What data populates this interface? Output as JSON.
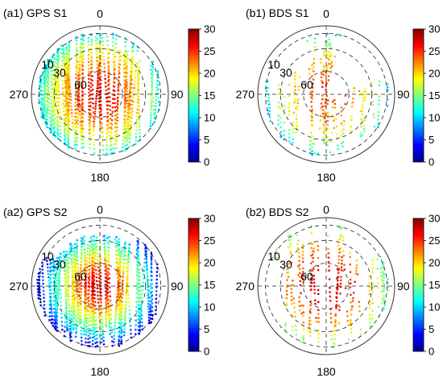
{
  "chart_data": [
    {
      "type": "scatter",
      "title": "(a1) GPS S1",
      "projection": "polar (skyplot)",
      "azimuth_labels": [
        "0",
        "90",
        "180",
        "270"
      ],
      "elevation_labels": [
        "10",
        "30",
        "60"
      ],
      "colorbar": {
        "range": [
          0,
          30
        ],
        "ticks": [
          "0",
          "5",
          "10",
          "15",
          "20",
          "25",
          "30"
        ],
        "colormap": "jet"
      },
      "footprint": "dense tracks over most of the sky; elevation >= ~10 deg",
      "values_by_elevation_deg": [
        {
          "elevation": 10,
          "value": 11
        },
        {
          "elevation": 20,
          "value": 15
        },
        {
          "elevation": 30,
          "value": 18
        },
        {
          "elevation": 45,
          "value": 21
        },
        {
          "elevation": 60,
          "value": 24
        },
        {
          "elevation": 75,
          "value": 26
        },
        {
          "elevation": 90,
          "value": 27
        }
      ]
    },
    {
      "type": "scatter",
      "title": "(b1) BDS S1",
      "projection": "polar (skyplot)",
      "azimuth_labels": [
        "0",
        "90",
        "180",
        "270"
      ],
      "elevation_labels": [
        "10",
        "30",
        "60"
      ],
      "colorbar": {
        "range": [
          0,
          30
        ],
        "ticks": [
          "0",
          "5",
          "10",
          "15",
          "20",
          "25",
          "30"
        ],
        "colormap": "jet"
      },
      "footprint": "sparser tracks; gap in the north-east",
      "values_by_elevation_deg": [
        {
          "elevation": 10,
          "value": 10
        },
        {
          "elevation": 20,
          "value": 14
        },
        {
          "elevation": 30,
          "value": 17
        },
        {
          "elevation": 45,
          "value": 20
        },
        {
          "elevation": 60,
          "value": 22
        },
        {
          "elevation": 75,
          "value": 24
        },
        {
          "elevation": 90,
          "value": 25
        }
      ]
    },
    {
      "type": "scatter",
      "title": "(a2) GPS S2",
      "projection": "polar (skyplot)",
      "azimuth_labels": [
        "0",
        "90",
        "180",
        "270"
      ],
      "elevation_labels": [
        "10",
        "30",
        "60"
      ],
      "colorbar": {
        "range": [
          0,
          30
        ],
        "ticks": [
          "0",
          "5",
          "10",
          "15",
          "20",
          "25",
          "30"
        ],
        "colormap": "jet"
      },
      "footprint": "dense tracks; very low values at low elevations in the south",
      "values_by_elevation_deg": [
        {
          "elevation": 10,
          "value": 3
        },
        {
          "elevation": 20,
          "value": 8
        },
        {
          "elevation": 30,
          "value": 12
        },
        {
          "elevation": 45,
          "value": 17
        },
        {
          "elevation": 60,
          "value": 22
        },
        {
          "elevation": 75,
          "value": 26
        },
        {
          "elevation": 90,
          "value": 28
        }
      ]
    },
    {
      "type": "scatter",
      "title": "(b2) BDS S2",
      "projection": "polar (skyplot)",
      "azimuth_labels": [
        "0",
        "90",
        "180",
        "270"
      ],
      "elevation_labels": [
        "10",
        "30",
        "60"
      ],
      "colorbar": {
        "range": [
          0,
          30
        ],
        "ticks": [
          "0",
          "5",
          "10",
          "15",
          "20",
          "25",
          "30"
        ],
        "colormap": "jet"
      },
      "footprint": "sparser tracks concentrated in the central band",
      "values_by_elevation_deg": [
        {
          "elevation": 10,
          "value": 14
        },
        {
          "elevation": 20,
          "value": 17
        },
        {
          "elevation": 30,
          "value": 20
        },
        {
          "elevation": 45,
          "value": 23
        },
        {
          "elevation": 60,
          "value": 25
        },
        {
          "elevation": 75,
          "value": 27
        },
        {
          "elevation": 90,
          "value": 28
        }
      ]
    }
  ]
}
